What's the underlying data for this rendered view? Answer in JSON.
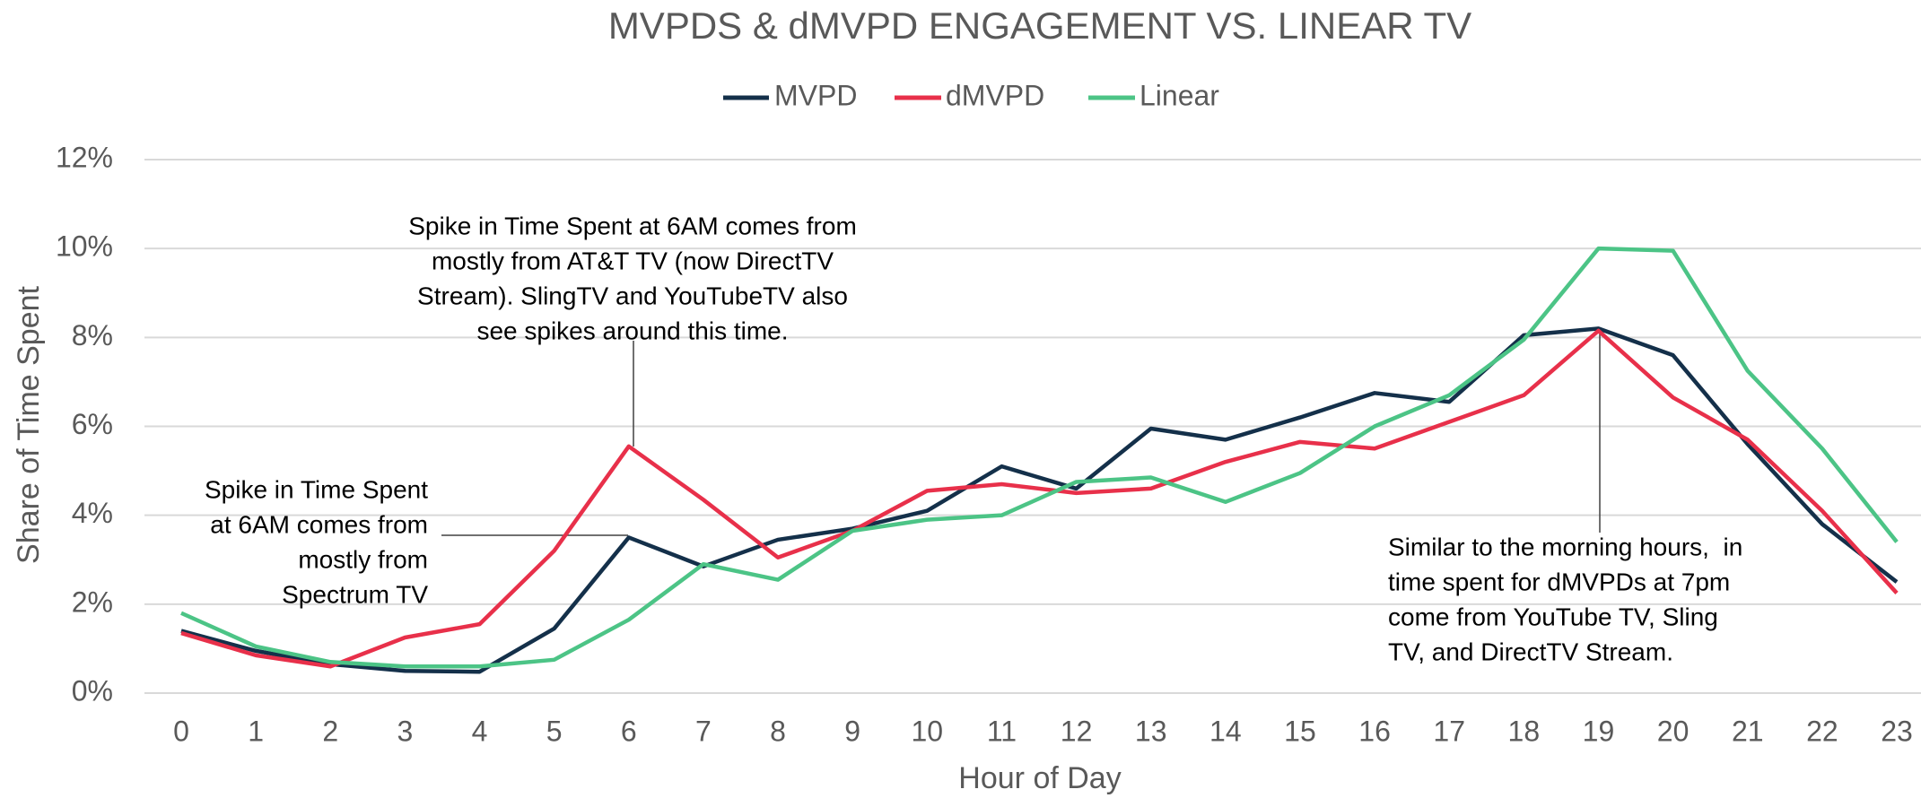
{
  "chart_data": {
    "type": "line",
    "title": "MVPDS & dMVPD ENGAGEMENT VS. LINEAR TV",
    "x_label": "Hour of Day",
    "y_label": "Share of Time Spent",
    "x": [
      0,
      1,
      2,
      3,
      4,
      5,
      6,
      7,
      8,
      9,
      10,
      11,
      12,
      13,
      14,
      15,
      16,
      17,
      18,
      19,
      20,
      21,
      22,
      23
    ],
    "xlim": [
      0,
      23
    ],
    "xticks": [
      0,
      1,
      2,
      3,
      4,
      5,
      6,
      7,
      8,
      9,
      10,
      11,
      12,
      13,
      14,
      15,
      16,
      17,
      18,
      19,
      20,
      21,
      22,
      23
    ],
    "ylim": [
      0,
      12
    ],
    "yticks": [
      {
        "value": 0,
        "label": "0%"
      },
      {
        "value": 2,
        "label": "2%"
      },
      {
        "value": 4,
        "label": "4%"
      },
      {
        "value": 6,
        "label": "6%"
      },
      {
        "value": 8,
        "label": "8%"
      },
      {
        "value": 10,
        "label": "10%"
      },
      {
        "value": 12,
        "label": "12%"
      }
    ],
    "grid": true,
    "legend": "top",
    "series": [
      {
        "name": "MVPD",
        "color": "#14304a",
        "values": [
          1.4,
          0.95,
          0.65,
          0.5,
          0.48,
          1.45,
          3.5,
          2.85,
          3.45,
          3.7,
          4.1,
          5.1,
          4.6,
          5.95,
          5.7,
          6.2,
          6.75,
          6.55,
          8.05,
          8.2,
          7.6,
          5.6,
          3.8,
          2.5
        ]
      },
      {
        "name": "dMVPD",
        "color": "#e8304a",
        "values": [
          1.35,
          0.85,
          0.6,
          1.25,
          1.55,
          3.2,
          5.55,
          4.35,
          3.05,
          3.65,
          4.55,
          4.7,
          4.5,
          4.6,
          5.2,
          5.65,
          5.5,
          6.1,
          6.7,
          8.15,
          6.65,
          5.7,
          4.1,
          2.25
        ]
      },
      {
        "name": "Linear",
        "color": "#4cc486",
        "values": [
          1.8,
          1.05,
          0.7,
          0.6,
          0.6,
          0.75,
          1.65,
          2.9,
          2.55,
          3.65,
          3.9,
          4.0,
          4.75,
          4.85,
          4.3,
          4.95,
          6.0,
          6.7,
          7.95,
          10.0,
          9.95,
          7.25,
          5.5,
          3.4
        ]
      }
    ],
    "annotations": [
      {
        "lines": [
          "Spike in Time Spent at 6AM comes from",
          "mostly from AT&T TV (now DirectTV",
          "Stream). SlingTV and YouTubeTV also",
          "see spikes around this time."
        ]
      },
      {
        "lines": [
          "Spike in Time Spent",
          "at 6AM comes from",
          "mostly from",
          "Spectrum TV"
        ]
      },
      {
        "lines": [
          "Similar to the morning hours,  in",
          "time spent for dMVPDs at 7pm",
          "come from YouTube TV, Sling",
          "TV, and DirectTV Stream."
        ]
      }
    ]
  }
}
